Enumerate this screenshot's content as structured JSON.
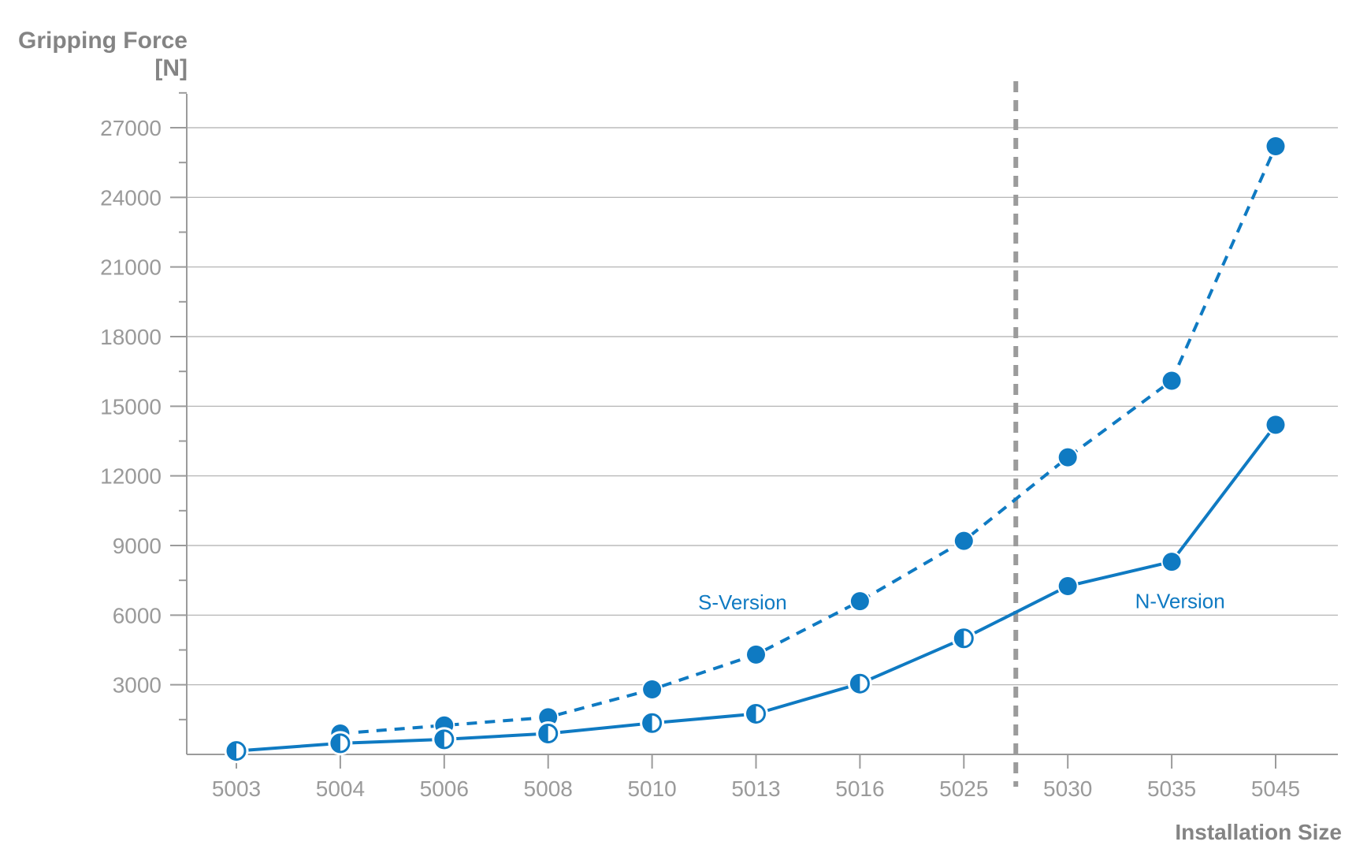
{
  "y_axis_title_line1": "Gripping Force",
  "y_axis_title_line2": "[N]",
  "x_axis_title": "Installation Size",
  "chart_data": {
    "type": "line",
    "title": "",
    "xlabel": "Installation Size",
    "ylabel": "Gripping Force [N]",
    "categories": [
      "5003",
      "5004",
      "5006",
      "5008",
      "5010",
      "5013",
      "5016",
      "5025",
      "5030",
      "5035",
      "5045"
    ],
    "y_tick_labels": [
      "3000",
      "6000",
      "9000",
      "12000",
      "15000",
      "18000",
      "21000",
      "24000",
      "27000"
    ],
    "ylim": [
      0,
      28500
    ],
    "y_major_step": 3000,
    "y_minor_step": 1500,
    "grid": "horizontal",
    "legend_position": "inline-annotations",
    "series": [
      {
        "name": "S-Version",
        "line_style": "dashed",
        "values": [
          null,
          900,
          1250,
          1600,
          2800,
          4300,
          6600,
          9200,
          12800,
          16100,
          26200
        ],
        "markers": [
          null,
          "full",
          "full",
          "full",
          "full",
          "full",
          "full",
          "full",
          "full",
          "full",
          "full"
        ]
      },
      {
        "name": "N-Version",
        "line_style": "solid",
        "values": [
          150,
          480,
          650,
          900,
          1350,
          1750,
          3050,
          5000,
          7250,
          8300,
          14200
        ],
        "markers": [
          "half",
          "half",
          "half",
          "half",
          "half",
          "half",
          "half",
          "half",
          "full",
          "full",
          "full"
        ]
      }
    ],
    "divider": {
      "style": "dashed-vertical",
      "between": [
        "5025",
        "5030"
      ]
    },
    "annotations": [
      {
        "text": "S-Version",
        "x_index": 4.87,
        "value": 6550
      },
      {
        "text": "N-Version",
        "x_index": 9.08,
        "value": 6600
      }
    ],
    "colors": {
      "series_blue": "#0f7ac2",
      "grid": "#adadad",
      "axis": "#9b9b9b",
      "tick_labels": "#9a9a9a",
      "titles": "#848484",
      "divider": "#9b9b9b"
    }
  }
}
